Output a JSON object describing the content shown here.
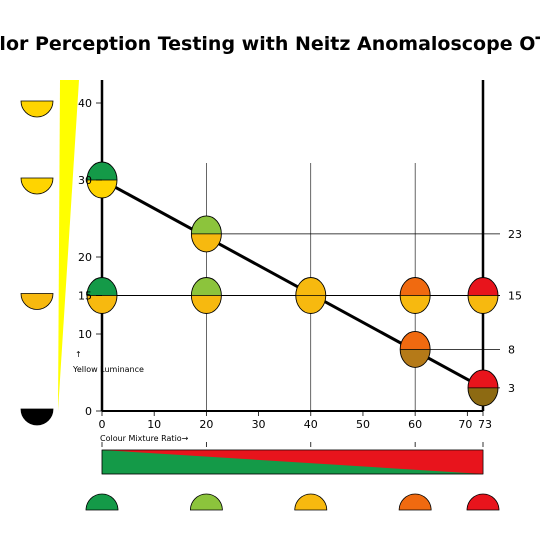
{
  "title": "Color Perception Testing with Neitz Anomaloscope OT-II",
  "y_axis_label": "Yellow Luminance",
  "y_axis_arrow": "↑",
  "x_axis_label": "Colour Mixture Ratio→",
  "colors": {
    "green": "#149a48",
    "yellow_green": "#8cc43c",
    "yellow": "#ffd400",
    "amber": "#f7b90f",
    "orange": "#f06a10",
    "red": "#e8141c",
    "olive_brown": "#8d6a12",
    "brown_orange": "#b57a18",
    "black": "#000000",
    "wedge_yellow": "#ffff00",
    "line": "#000000"
  },
  "chart_data": {
    "type": "scatter",
    "x_ticks": [
      "0",
      "10",
      "20",
      "30",
      "40",
      "50",
      "60",
      "70",
      "73"
    ],
    "x_tick_values": [
      0,
      10,
      20,
      30,
      40,
      50,
      60,
      70,
      73
    ],
    "y_ticks": [
      "0",
      "10",
      "15",
      "20",
      "30",
      "40"
    ],
    "y_tick_values": [
      0,
      10,
      15,
      20,
      30,
      40
    ],
    "xlim": [
      0,
      73
    ],
    "ylim": [
      0,
      40
    ],
    "match_line": [
      {
        "x": 0,
        "y": 30
      },
      {
        "x": 73,
        "y": 3
      }
    ],
    "split_circles": [
      {
        "x": 0,
        "y": 30,
        "top": "green",
        "bottom": "yellow"
      },
      {
        "x": 20,
        "y": 23,
        "top": "yellow_green",
        "bottom": "amber"
      },
      {
        "x": 0,
        "y": 15,
        "top": "green",
        "bottom": "amber"
      },
      {
        "x": 20,
        "y": 15,
        "top": "yellow_green",
        "bottom": "amber"
      },
      {
        "x": 40,
        "y": 15,
        "top": "amber",
        "bottom": "amber"
      },
      {
        "x": 60,
        "y": 15,
        "top": "orange",
        "bottom": "amber"
      },
      {
        "x": 73,
        "y": 15,
        "top": "red",
        "bottom": "amber"
      },
      {
        "x": 60,
        "y": 8,
        "top": "orange",
        "bottom": "brown_orange"
      },
      {
        "x": 73,
        "y": 3,
        "top": "red",
        "bottom": "olive_brown"
      }
    ],
    "reference_lines": [
      {
        "y": 23,
        "label": "23"
      },
      {
        "y": 15,
        "label": "15"
      },
      {
        "y": 8,
        "label": "8"
      },
      {
        "y": 3,
        "label": "3"
      }
    ],
    "left_half_discs": [
      {
        "y": 40,
        "color": "yellow"
      },
      {
        "y": 30,
        "color": "yellow"
      },
      {
        "y": 15,
        "color": "amber"
      },
      {
        "y": 0,
        "color": "black"
      }
    ],
    "bottom_half_discs": [
      {
        "x": 0,
        "color": "green"
      },
      {
        "x": 20,
        "color": "yellow_green"
      },
      {
        "x": 40,
        "color": "amber"
      },
      {
        "x": 60,
        "color": "orange"
      },
      {
        "x": 73,
        "color": "red"
      }
    ]
  }
}
